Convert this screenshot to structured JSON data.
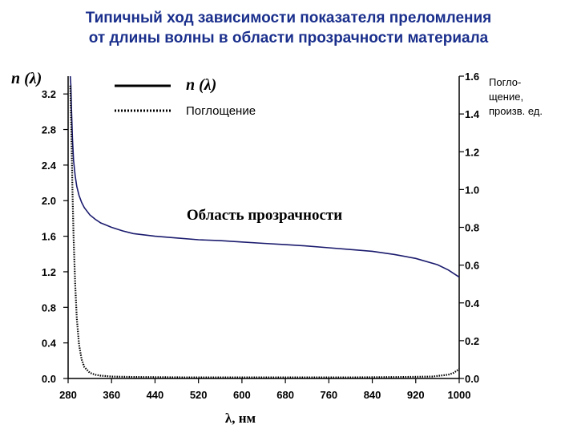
{
  "title": {
    "line1": "Типичный ход зависимости показателя преломления",
    "line2": "от длины волны в области прозрачности материала"
  },
  "right_axis_label": {
    "line1": "Погло-",
    "line2": "щение,",
    "line3": "произв. ед."
  },
  "chart_data": {
    "type": "line",
    "ylabel": "n (λ)",
    "xlabel": "λ, нм",
    "xlim": [
      280,
      1000
    ],
    "ylim": [
      0.0,
      3.4
    ],
    "y2lim": [
      0.0,
      1.6
    ],
    "xticks": [
      "280",
      "360",
      "440",
      "520",
      "600",
      "680",
      "760",
      "840",
      "920",
      "1000"
    ],
    "yticks": [
      "0.0",
      "0.4",
      "0.8",
      "1.2",
      "1.6",
      "2.0",
      "2.4",
      "2.8",
      "3.2"
    ],
    "y2ticks": [
      "0.0",
      "0.2",
      "0.4",
      "0.6",
      "0.8",
      "1.0",
      "1.2",
      "1.4",
      "1.6"
    ],
    "annotation": "Область прозрачности",
    "legend": [
      {
        "label": "n (λ)",
        "style": "solid"
      },
      {
        "label": "Поглощение",
        "style": "dotted"
      }
    ],
    "series": [
      {
        "name": "n (λ)",
        "axis": "left",
        "color": "#1a1a6e",
        "x": [
          284,
          285,
          286,
          288,
          290,
          293,
          296,
          300,
          305,
          310,
          320,
          330,
          340,
          360,
          380,
          400,
          440,
          480,
          520,
          560,
          600,
          640,
          680,
          720,
          760,
          800,
          840,
          880,
          920,
          960,
          980,
          1000
        ],
        "y": [
          3.4,
          3.3,
          3.05,
          2.7,
          2.45,
          2.28,
          2.16,
          2.06,
          1.98,
          1.92,
          1.84,
          1.79,
          1.75,
          1.7,
          1.66,
          1.63,
          1.6,
          1.58,
          1.56,
          1.55,
          1.535,
          1.52,
          1.505,
          1.49,
          1.47,
          1.45,
          1.43,
          1.395,
          1.35,
          1.28,
          1.22,
          1.14
        ]
      },
      {
        "name": "Поглощение",
        "axis": "right",
        "color": "#000000",
        "x": [
          284,
          286,
          288,
          290,
          293,
          296,
          300,
          305,
          310,
          320,
          330,
          340,
          360,
          400,
          500,
          600,
          700,
          800,
          900,
          950,
          980,
          990,
          1000
        ],
        "y": [
          1.55,
          1.3,
          1.0,
          0.75,
          0.5,
          0.32,
          0.18,
          0.1,
          0.06,
          0.03,
          0.02,
          0.015,
          0.01,
          0.008,
          0.006,
          0.006,
          0.006,
          0.006,
          0.008,
          0.01,
          0.02,
          0.03,
          0.05
        ]
      }
    ]
  }
}
